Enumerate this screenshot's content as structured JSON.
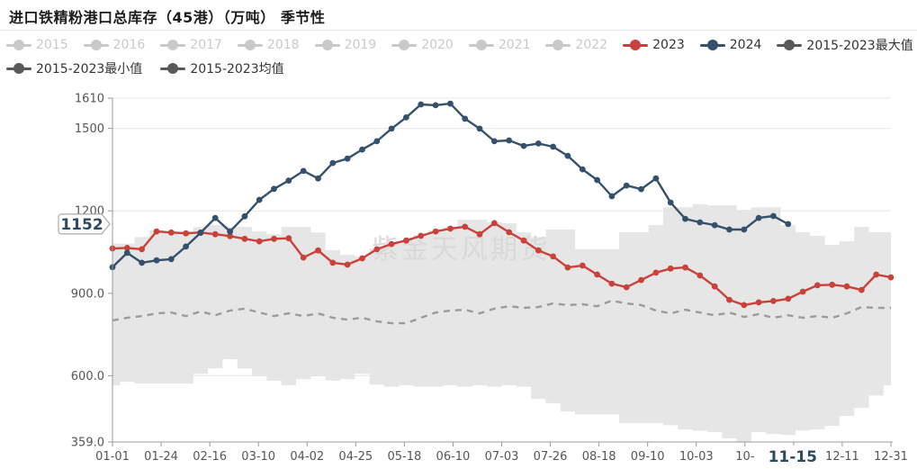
{
  "title": "进口铁精粉港口总库存（45港）（万吨） 季节性",
  "watermark": "紫金天风期货",
  "colors": {
    "red": "#c8413b",
    "navy": "#34506b",
    "dark_marker": "#595959",
    "disabled": "#c9c9c9",
    "band_fill": "#e4e4e4",
    "mean_line": "#9b9b9b",
    "grid": "#e6e6e6",
    "axis": "#999999",
    "axis_label": "#555555",
    "pointer_text": "#2e4a61",
    "pointer_border": "#aaaaaa",
    "watermark_color": "#d9d9d9"
  },
  "legend": {
    "rows": [
      [
        {
          "label": "2015",
          "state": "disabled"
        },
        {
          "label": "2016",
          "state": "disabled"
        },
        {
          "label": "2017",
          "state": "disabled"
        },
        {
          "label": "2018",
          "state": "disabled"
        },
        {
          "label": "2019",
          "state": "disabled"
        },
        {
          "label": "2020",
          "state": "disabled"
        },
        {
          "label": "2021",
          "state": "disabled"
        },
        {
          "label": "2022",
          "state": "disabled"
        },
        {
          "label": "2023",
          "state": "red"
        },
        {
          "label": "2024",
          "state": "navy"
        },
        {
          "label": "2015-2023最大值",
          "state": "dark"
        }
      ],
      [
        {
          "label": "2015-2023最小值",
          "state": "dark"
        },
        {
          "label": "2015-2023均值",
          "state": "dark"
        }
      ]
    ]
  },
  "chart_data": {
    "type": "line",
    "title": "进口铁精粉港口总库存（45港）（万吨） 季节性",
    "ylim": [
      359,
      1610
    ],
    "n_points": 54,
    "grid": true,
    "legend_position": "top",
    "y_ticks": [
      {
        "value": 1610,
        "label": "1610"
      },
      {
        "value": 1500,
        "label": "1500"
      },
      {
        "value": 1200,
        "label": "1200"
      },
      {
        "value": 900,
        "label": "900.0"
      },
      {
        "value": 600,
        "label": "600.0"
      },
      {
        "value": 359,
        "label": "359.0"
      }
    ],
    "x_tick_labels": [
      "01-01",
      "01-24",
      "02-16",
      "03-10",
      "04-02",
      "04-25",
      "05-18",
      "06-10",
      "07-03",
      "07-26",
      "08-18",
      "09-10",
      "10-03",
      "10-",
      "",
      "12-11",
      "12-31"
    ],
    "axis_pointer": {
      "y_label": "1152",
      "x_label": "11-15"
    },
    "series": [
      {
        "name": "2015-2023最大值",
        "role": "band_max",
        "values": [
          1080,
          1080,
          1105,
          1130,
          1125,
          1125,
          1140,
          1148,
          1142,
          1142,
          1125,
          1115,
          1142,
          1142,
          1121,
          1057,
          1040,
          1034,
          1062,
          1082,
          1092,
          1112,
          1128,
          1140,
          1168,
          1168,
          1158,
          1155,
          1122,
          1105,
          1132,
          1132,
          1060,
          1060,
          1060,
          1122,
          1122,
          1148,
          1213,
          1213,
          1224,
          1220,
          1220,
          1203,
          1213,
          1213,
          1148,
          1122,
          1109,
          1076,
          1089,
          1142,
          1122,
          1122
        ]
      },
      {
        "name": "2015-2023最小值",
        "role": "band_min",
        "values": [
          565,
          578,
          572,
          572,
          572,
          572,
          607,
          627,
          660,
          627,
          598,
          582,
          565,
          588,
          598,
          582,
          588,
          607,
          568,
          560,
          565,
          560,
          560,
          565,
          560,
          565,
          560,
          565,
          560,
          516,
          500,
          470,
          460,
          460,
          460,
          428,
          428,
          428,
          420,
          405,
          400,
          395,
          372,
          360,
          395,
          388,
          385,
          401,
          405,
          418,
          454,
          483,
          528,
          565
        ]
      },
      {
        "name": "2015-2023均值",
        "role": "mean",
        "values": [
          801,
          811,
          817,
          827,
          830,
          817,
          834,
          820,
          837,
          844,
          830,
          817,
          827,
          817,
          827,
          811,
          804,
          811,
          798,
          791,
          791,
          811,
          830,
          837,
          840,
          827,
          844,
          853,
          847,
          850,
          863,
          857,
          860,
          853,
          873,
          863,
          857,
          837,
          827,
          840,
          830,
          820,
          830,
          814,
          824,
          811,
          820,
          811,
          817,
          811,
          827,
          850,
          847,
          847
        ]
      },
      {
        "name": "2023",
        "role": "line",
        "color_key": "red",
        "values": [
          1063,
          1065,
          1060,
          1125,
          1121,
          1118,
          1121,
          1115,
          1108,
          1098,
          1089,
          1098,
          1100,
          1030,
          1056,
          1011,
          1004,
          1027,
          1060,
          1079,
          1092,
          1109,
          1125,
          1135,
          1142,
          1115,
          1155,
          1122,
          1092,
          1056,
          1034,
          994,
          1001,
          968,
          935,
          922,
          948,
          975,
          990,
          994,
          965,
          925,
          876,
          857,
          867,
          872,
          880,
          906,
          929,
          931,
          925,
          912,
          968,
          958
        ]
      },
      {
        "name": "2024",
        "role": "line",
        "color_key": "navy",
        "values": [
          995,
          1047,
          1011,
          1020,
          1024,
          1070,
          1120,
          1174,
          1125,
          1180,
          1240,
          1280,
          1310,
          1345,
          1318,
          1374,
          1390,
          1423,
          1453,
          1499,
          1540,
          1587,
          1584,
          1590,
          1535,
          1499,
          1453,
          1456,
          1436,
          1445,
          1433,
          1400,
          1351,
          1312,
          1253,
          1292,
          1279,
          1318,
          1230,
          1171,
          1158,
          1148,
          1132,
          1132,
          1174,
          1181,
          1152
        ]
      }
    ]
  }
}
